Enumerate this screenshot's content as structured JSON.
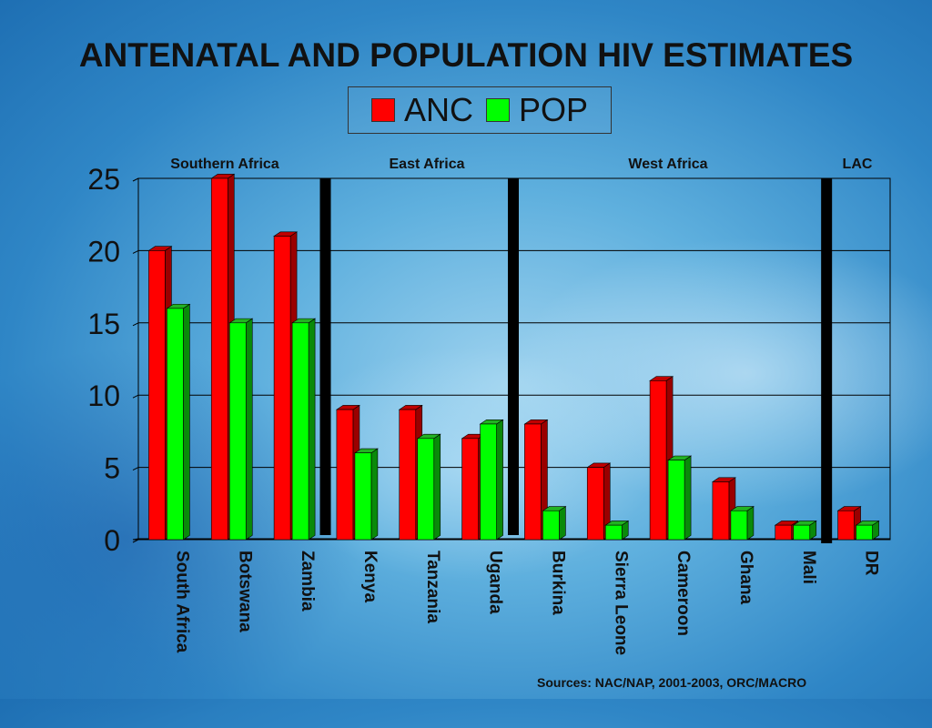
{
  "chart_data": {
    "type": "bar",
    "title": "ANTENATAL AND POPULATION HIV ESTIMATES",
    "categories": [
      "South Africa",
      "Botswana",
      "Zambia",
      "Kenya",
      "Tanzania",
      "Uganda",
      "Burkina",
      "Sierra Leone",
      "Cameroon",
      "Ghana",
      "Mali",
      "DR"
    ],
    "series": [
      {
        "name": "ANC",
        "color": "#ff0000",
        "values": [
          20,
          25,
          21,
          9,
          9,
          7,
          8,
          5,
          11,
          4,
          1,
          2
        ]
      },
      {
        "name": "POP",
        "color": "#00ff00",
        "values": [
          16,
          15,
          15,
          6,
          7,
          8,
          2,
          1,
          5.5,
          2,
          1,
          1
        ]
      }
    ],
    "ylim": [
      0,
      25
    ],
    "yticks": [
      0,
      5,
      10,
      15,
      20,
      25
    ],
    "grid": true,
    "legend_position": "top",
    "regions": [
      "Southern Africa",
      "East Africa",
      "West Africa",
      "LAC"
    ],
    "dividers_after_category": [
      3,
      6,
      11
    ]
  },
  "sources": "Sources: NAC/NAP, 2001-2003, ORC/MACRO"
}
